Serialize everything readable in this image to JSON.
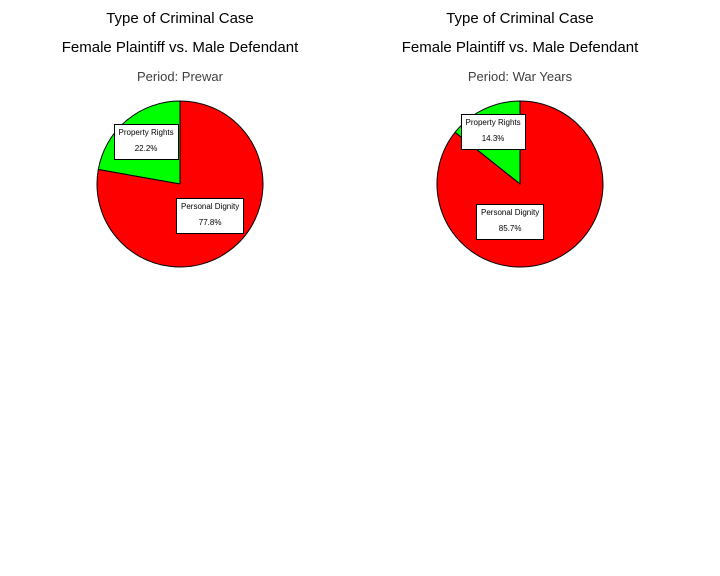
{
  "chart_data": [
    {
      "type": "pie",
      "title": "Type of Criminal Case",
      "subtitle": "Female Plaintiff vs. Male Defendant",
      "period": "Period: Prewar",
      "slices": [
        {
          "label": "Property Rights",
          "value": 22.2,
          "value_label": "22.2%",
          "color": "#00ff00"
        },
        {
          "label": "Personal Dignity",
          "value": 77.8,
          "value_label": "77.8%",
          "color": "#ff0000"
        }
      ]
    },
    {
      "type": "pie",
      "title": "Type of Criminal Case",
      "subtitle": "Female Plaintiff vs. Male Defendant",
      "period": "Period: War Years",
      "slices": [
        {
          "label": "Property Rights",
          "value": 14.3,
          "value_label": "14.3%",
          "color": "#00ff00"
        },
        {
          "label": "Personal Dignity",
          "value": 85.7,
          "value_label": "85.7%",
          "color": "#ff0000"
        }
      ]
    }
  ]
}
